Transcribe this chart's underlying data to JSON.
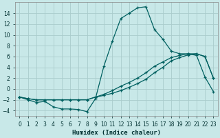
{
  "xlabel": "Humidex (Indice chaleur)",
  "bg_color": "#c8e8e8",
  "grid_color": "#b0d0d0",
  "line_color": "#006060",
  "xlim": [
    -0.5,
    23.5
  ],
  "ylim": [
    -5.0,
    16.0
  ],
  "xticks": [
    0,
    1,
    2,
    3,
    4,
    5,
    6,
    7,
    8,
    9,
    10,
    11,
    12,
    13,
    14,
    15,
    16,
    17,
    18,
    19,
    20,
    21,
    22,
    23
  ],
  "yticks": [
    -4,
    -2,
    0,
    2,
    4,
    6,
    8,
    10,
    12,
    14
  ],
  "curve1_x": [
    0,
    1,
    2,
    3,
    4,
    5,
    6,
    7,
    8,
    9,
    10,
    11,
    12,
    13,
    14,
    15,
    16,
    17,
    18,
    19,
    20,
    21,
    22,
    23
  ],
  "curve1_y": [
    -1.5,
    -2.0,
    -2.5,
    -2.3,
    -3.3,
    -3.7,
    -3.7,
    -3.8,
    -4.2,
    -1.8,
    4.2,
    8.8,
    13.0,
    14.0,
    15.0,
    15.2,
    11.0,
    9.2,
    7.0,
    6.5,
    6.5,
    6.2,
    2.2,
    -0.5
  ],
  "curve2_x": [
    0,
    1,
    2,
    3,
    4,
    5,
    6,
    7,
    8,
    9,
    10,
    11,
    12,
    13,
    14,
    15,
    16,
    17,
    18,
    19,
    20,
    21,
    22,
    23
  ],
  "curve2_y": [
    -1.5,
    -1.8,
    -2.0,
    -2.0,
    -2.0,
    -2.0,
    -2.0,
    -2.0,
    -2.0,
    -1.5,
    -1.0,
    -0.3,
    0.5,
    1.2,
    2.0,
    3.0,
    4.2,
    5.0,
    5.8,
    6.2,
    6.5,
    6.5,
    6.0,
    2.0
  ],
  "curve3_x": [
    0,
    1,
    2,
    3,
    4,
    5,
    6,
    7,
    8,
    9,
    10,
    11,
    12,
    13,
    14,
    15,
    16,
    17,
    18,
    19,
    20,
    21,
    22,
    23
  ],
  "curve3_y": [
    -1.5,
    -1.8,
    -2.0,
    -2.0,
    -2.0,
    -2.0,
    -2.0,
    -2.0,
    -2.0,
    -1.5,
    -1.2,
    -0.8,
    -0.3,
    0.3,
    1.0,
    1.8,
    3.0,
    4.0,
    5.2,
    5.8,
    6.3,
    6.5,
    6.0,
    2.0
  ]
}
